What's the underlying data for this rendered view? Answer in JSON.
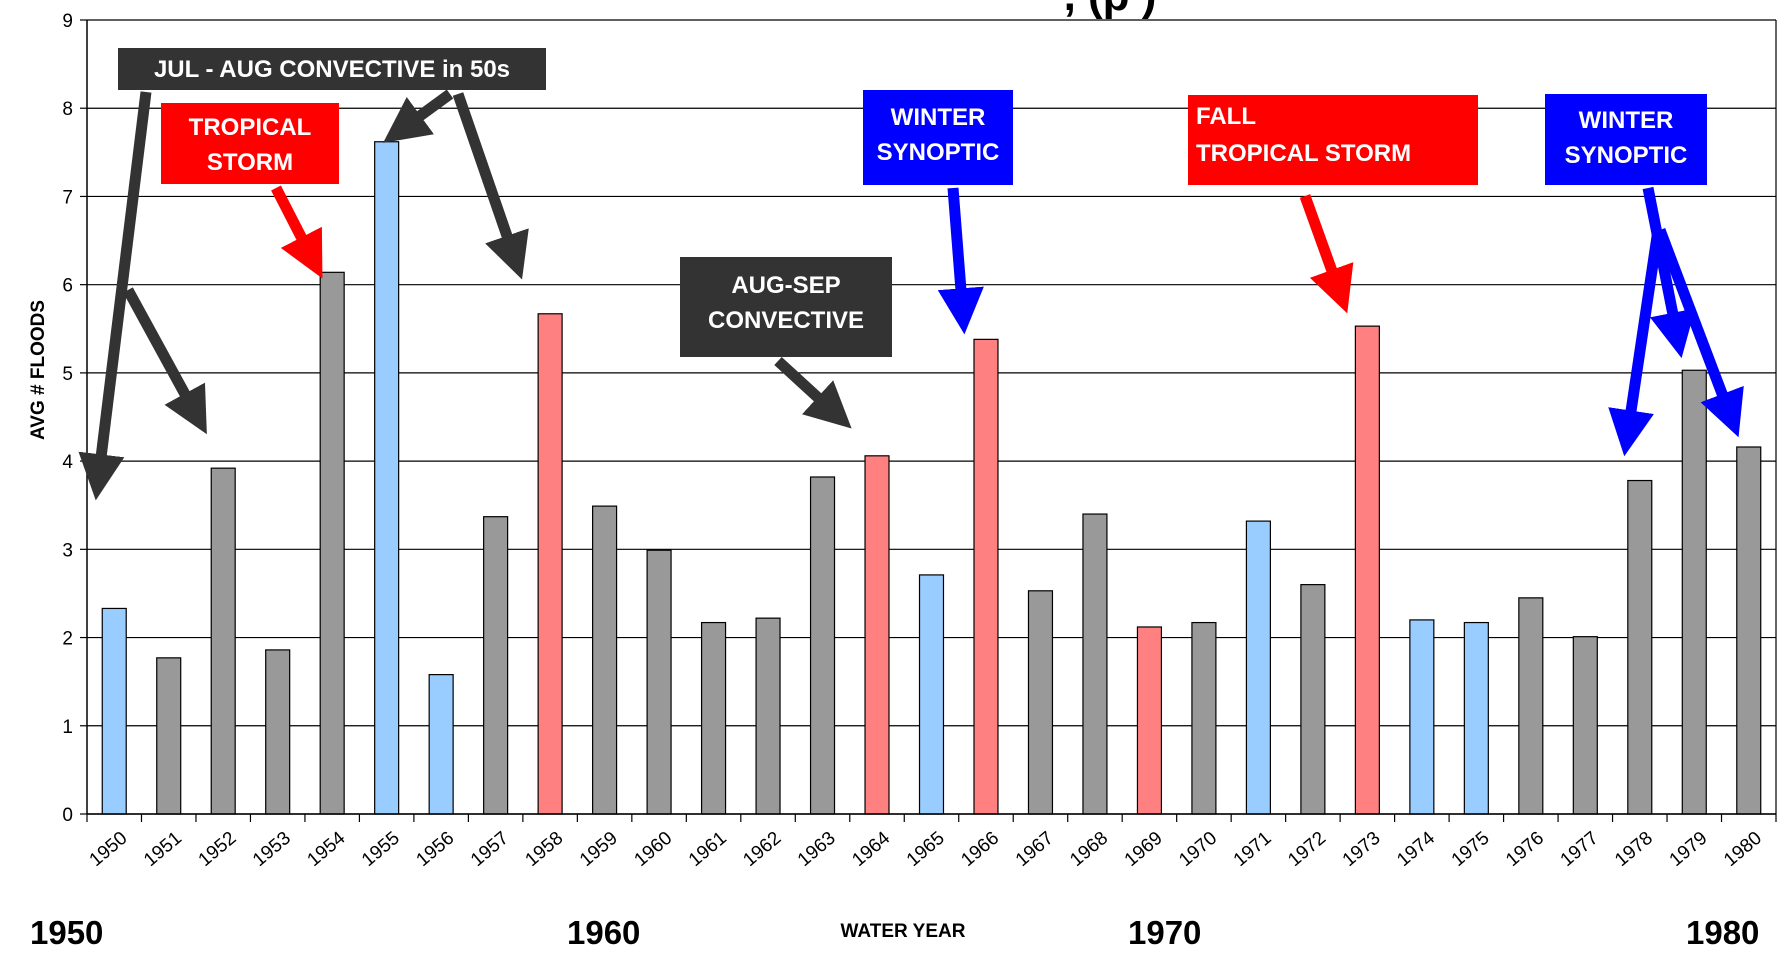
{
  "chart_data": {
    "type": "bar",
    "title": ", (p )",
    "xlabel": "WATER YEAR",
    "ylabel": "AVG # FLOODS",
    "ylim": [
      0,
      9
    ],
    "yticks": [
      0,
      1,
      2,
      3,
      4,
      5,
      6,
      7,
      8,
      9
    ],
    "grid": true,
    "categories": [
      "1950",
      "1951",
      "1952",
      "1953",
      "1954",
      "1955",
      "1956",
      "1957",
      "1958",
      "1959",
      "1960",
      "1961",
      "1962",
      "1963",
      "1964",
      "1965",
      "1966",
      "1967",
      "1968",
      "1969",
      "1970",
      "1971",
      "1972",
      "1973",
      "1974",
      "1975",
      "1976",
      "1977",
      "1978",
      "1979",
      "1980"
    ],
    "values": [
      2.33,
      1.77,
      3.92,
      1.86,
      6.14,
      7.62,
      1.58,
      3.37,
      5.67,
      3.49,
      2.99,
      2.17,
      2.22,
      3.82,
      4.06,
      2.71,
      5.38,
      2.53,
      3.4,
      2.12,
      2.17,
      3.32,
      2.6,
      5.53,
      2.2,
      2.17,
      2.45,
      2.01,
      3.78,
      5.03,
      4.16
    ],
    "bar_colors": [
      "#99ccff",
      "#999999",
      "#999999",
      "#999999",
      "#999999",
      "#99ccff",
      "#99ccff",
      "#999999",
      "#ff8080",
      "#999999",
      "#999999",
      "#999999",
      "#999999",
      "#999999",
      "#ff8080",
      "#99ccff",
      "#ff8080",
      "#999999",
      "#999999",
      "#ff8080",
      "#999999",
      "#99ccff",
      "#999999",
      "#ff8080",
      "#99ccff",
      "#99ccff",
      "#999999",
      "#999999",
      "#999999",
      "#999999",
      "#999999"
    ],
    "decade_labels": [
      "1950",
      "1960",
      "1970",
      "1980"
    ],
    "annotations": [
      {
        "lines": [
          "JUL - AUG CONVECTIVE in 50s"
        ],
        "box_color": "#333333",
        "text_color": "#ffffff",
        "arrow_color": "#333333"
      },
      {
        "lines": [
          "TROPICAL",
          "STORM"
        ],
        "box_color": "#ff0000",
        "text_color": "#ffffff",
        "arrow_color": "#ff0000"
      },
      {
        "lines": [
          "WINTER",
          "SYNOPTIC"
        ],
        "box_color": "#0000ff",
        "text_color": "#ffffff",
        "arrow_color": "#0000ff"
      },
      {
        "lines": [
          "FALL",
          "TROPICAL STORM"
        ],
        "box_color": "#ff0000",
        "text_color": "#ffffff",
        "arrow_color": "#ff0000"
      },
      {
        "lines": [
          "WINTER",
          "SYNOPTIC"
        ],
        "box_color": "#0000ff",
        "text_color": "#ffffff",
        "arrow_color": "#0000ff"
      },
      {
        "lines": [
          "AUG-SEP",
          "CONVECTIVE"
        ],
        "box_color": "#333333",
        "text_color": "#ffffff",
        "arrow_color": "#333333"
      }
    ]
  }
}
